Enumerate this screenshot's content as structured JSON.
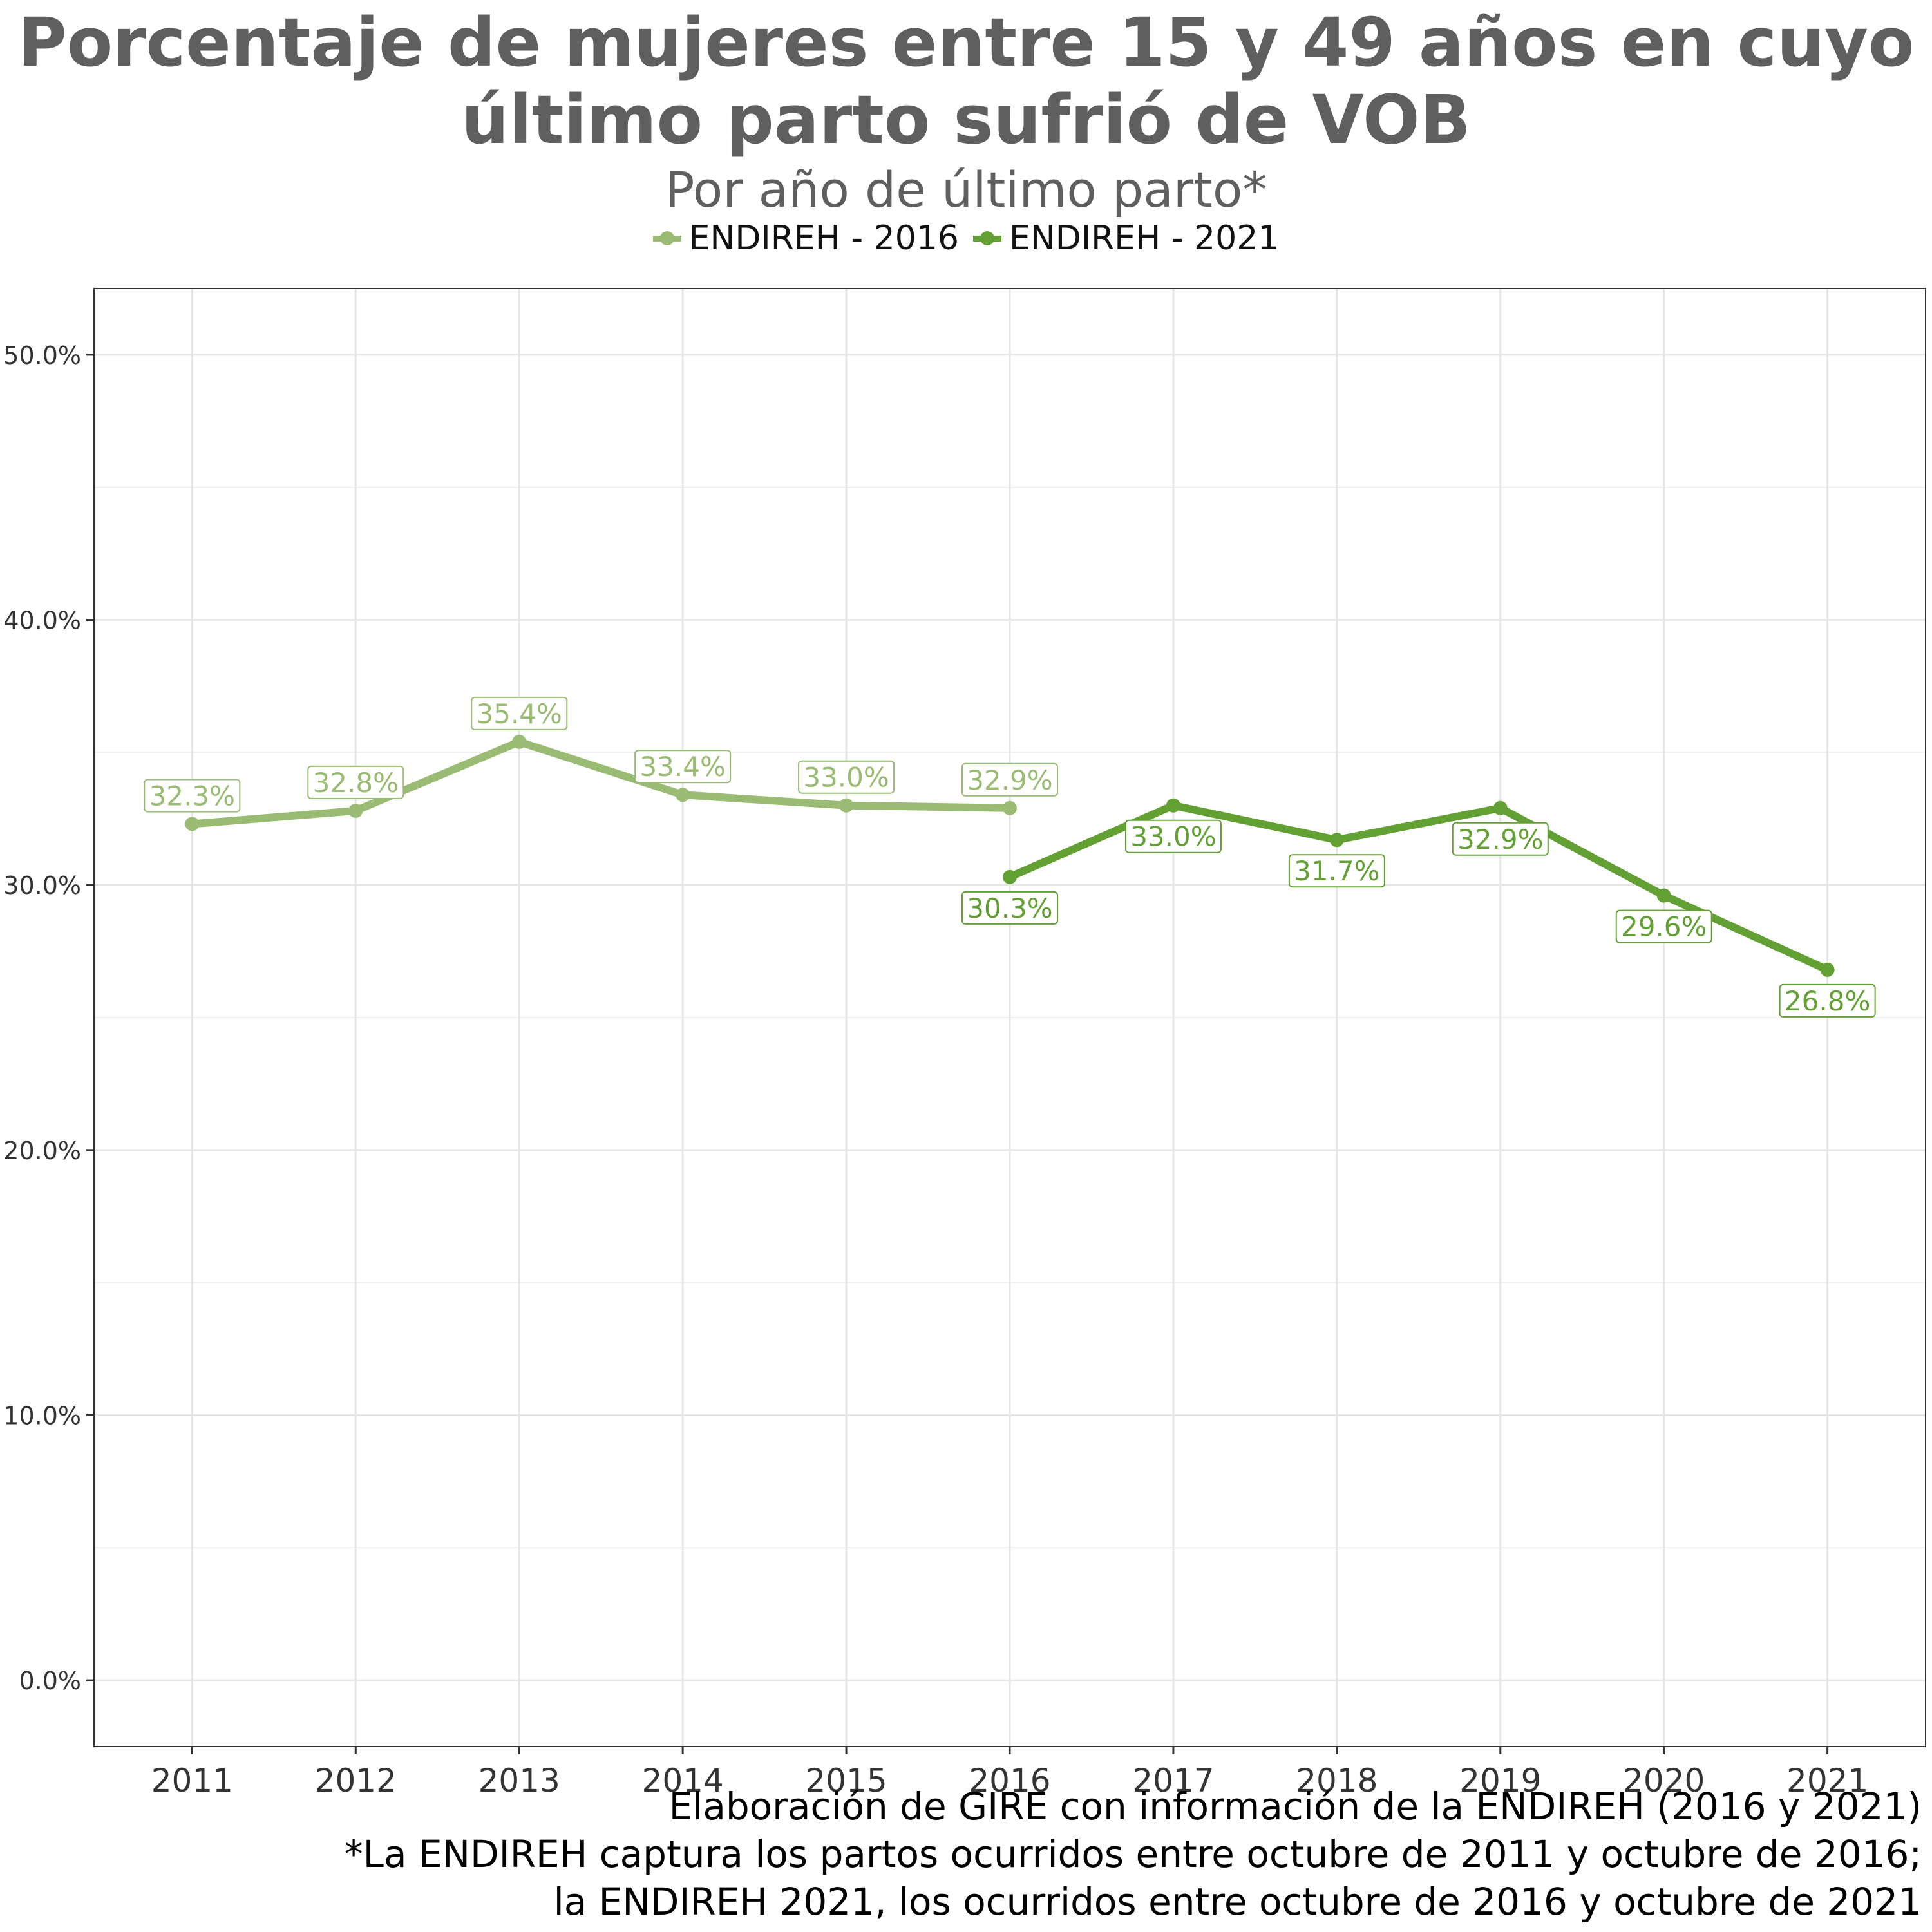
{
  "title_lines": [
    "Porcentaje de mujeres entre 15 y 49 años en cuyo",
    "último parto sufrió de VOB"
  ],
  "subtitle": "Por año de último parto*",
  "caption_lines": [
    "Elaboración de GIRE con información de la ENDIREH (2016 y 2021)",
    "*La ENDIREH captura los partos ocurridos entre octubre de 2011 y octubre de 2016;",
    "la ENDIREH 2021, los ocurridos entre octubre de 2016 y octubre de 2021"
  ],
  "colors": {
    "series_2016": "#99bb73",
    "series_2021": "#62a034",
    "grid": "#e6e6e6",
    "axis_text": "#333333"
  },
  "chart_data": {
    "type": "line",
    "title": "Porcentaje de mujeres entre 15 y 49 años en cuyo último parto sufrió de VOB",
    "subtitle": "Por año de último parto*",
    "x": [
      2011,
      2012,
      2013,
      2014,
      2015,
      2016,
      2017,
      2018,
      2019,
      2020,
      2021
    ],
    "x_tick_labels": [
      "2011",
      "2012",
      "2013",
      "2014",
      "2015",
      "2016",
      "2017",
      "2018",
      "2019",
      "2020",
      "2021"
    ],
    "y_ticks": [
      0,
      10,
      20,
      30,
      40,
      50
    ],
    "y_tick_labels": [
      "0.0%",
      "10.0%",
      "20.0%",
      "30.0%",
      "40.0%",
      "50.0%"
    ],
    "ylim": [
      -2.5,
      52.5
    ],
    "xlim": [
      2010.4,
      2021.6
    ],
    "grid": true,
    "legend_position": "top",
    "series": [
      {
        "name": "ENDIREH - 2016",
        "x": [
          2011,
          2012,
          2013,
          2014,
          2015,
          2016
        ],
        "values": [
          32.3,
          32.8,
          35.4,
          33.4,
          33.0,
          32.9
        ],
        "labels": [
          "32.3%",
          "32.8%",
          "35.4%",
          "33.4%",
          "33.0%",
          "32.9%"
        ],
        "label_side": "above"
      },
      {
        "name": "ENDIREH - 2021",
        "x": [
          2016,
          2017,
          2018,
          2019,
          2020,
          2021
        ],
        "values": [
          30.3,
          33.0,
          31.7,
          32.9,
          29.6,
          26.8
        ],
        "labels": [
          "30.3%",
          "33.0%",
          "31.7%",
          "32.9%",
          "29.6%",
          "26.8%"
        ],
        "label_side": "below"
      }
    ]
  }
}
